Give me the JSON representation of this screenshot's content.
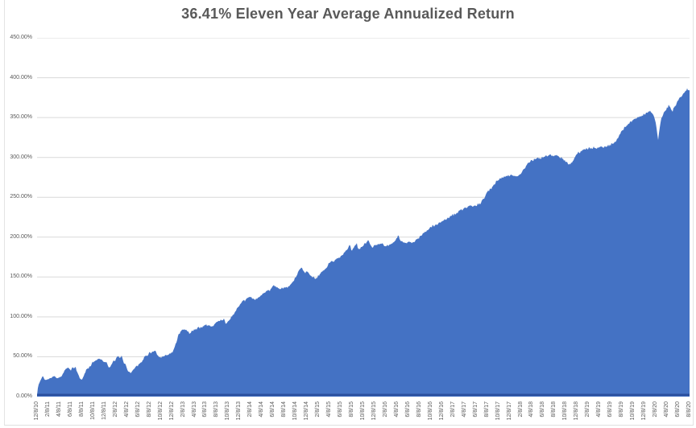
{
  "title": "36.41% Eleven Year Average Annualized Return",
  "colors": {
    "area_fill": "#4472C4",
    "area_bottom_edge": "#2B4F9E",
    "gridline": "#D9D9D9",
    "axis_text": "#595959",
    "title_text": "#595959",
    "chart_border": "#E3E3E3"
  },
  "chart_data": {
    "type": "area",
    "title": "36.41% Eleven Year Average Annualized Return",
    "xlabel": "",
    "ylabel": "",
    "legend": "none",
    "grid": "horizontal",
    "y_axis": {
      "min": 0,
      "max": 450,
      "step": 50,
      "unit": "percent",
      "tick_labels_top_down": [
        "450.00%",
        "400.00%",
        "350.00%",
        "300.00%",
        "250.00%",
        "200.00%",
        "150.00%",
        "100.00%",
        "50.00%",
        "0.00%"
      ]
    },
    "x_axis": {
      "tick_labels": [
        "12/8/10",
        "2/8/11",
        "4/8/11",
        "6/8/11",
        "8/8/11",
        "10/8/11",
        "12/8/11",
        "2/8/12",
        "4/8/12",
        "6/8/12",
        "8/8/12",
        "10/8/12",
        "12/8/12",
        "2/8/13",
        "4/8/13",
        "6/8/13",
        "8/8/13",
        "10/8/13",
        "12/8/13",
        "2/8/14",
        "4/8/14",
        "6/8/14",
        "8/8/14",
        "10/8/14",
        "12/8/14",
        "2/8/15",
        "4/8/15",
        "6/8/15",
        "8/8/15",
        "10/8/15",
        "12/8/15",
        "2/8/16",
        "4/8/16",
        "6/8/16",
        "8/8/16",
        "10/8/16",
        "12/8/16",
        "2/8/17",
        "4/8/17",
        "6/8/17",
        "8/8/17",
        "10/8/17",
        "12/8/17",
        "2/8/18",
        "4/8/18",
        "6/8/18",
        "8/8/18",
        "10/8/18",
        "12/8/18",
        "2/8/19",
        "4/8/19",
        "6/8/19",
        "8/8/19",
        "10/8/19",
        "12/8/19",
        "2/8/20",
        "4/8/20",
        "6/8/20",
        "8/8/20"
      ]
    },
    "x_unit": "tick_index",
    "y_unit": "percent_cumulative_return",
    "series": [
      {
        "color": "#4472C4",
        "points": [
          [
            0,
            2
          ],
          [
            0.1,
            14
          ],
          [
            0.3,
            20
          ],
          [
            0.5,
            26
          ],
          [
            0.7,
            21
          ],
          [
            1,
            22
          ],
          [
            1.3,
            24
          ],
          [
            1.5,
            26
          ],
          [
            1.8,
            23
          ],
          [
            2,
            24
          ],
          [
            2.2,
            26
          ],
          [
            2.5,
            34
          ],
          [
            2.8,
            36
          ],
          [
            3,
            33
          ],
          [
            3.2,
            36
          ],
          [
            3.4,
            37
          ],
          [
            3.6,
            30
          ],
          [
            3.8,
            23
          ],
          [
            4,
            21
          ],
          [
            4.2,
            28
          ],
          [
            4.4,
            34
          ],
          [
            4.7,
            38
          ],
          [
            5,
            44
          ],
          [
            5.3,
            46
          ],
          [
            5.6,
            48
          ],
          [
            5.9,
            45
          ],
          [
            6.2,
            42
          ],
          [
            6.4,
            35
          ],
          [
            6.6,
            40
          ],
          [
            6.8,
            44
          ],
          [
            7,
            47
          ],
          [
            7.2,
            50
          ],
          [
            7.4,
            48
          ],
          [
            7.5,
            51
          ],
          [
            7.7,
            44
          ],
          [
            7.9,
            38
          ],
          [
            8.1,
            33
          ],
          [
            8.3,
            29
          ],
          [
            8.5,
            33
          ],
          [
            8.7,
            37
          ],
          [
            9,
            40
          ],
          [
            9.3,
            44
          ],
          [
            9.6,
            50
          ],
          [
            10,
            55
          ],
          [
            10.3,
            56
          ],
          [
            10.5,
            57
          ],
          [
            10.7,
            52
          ],
          [
            10.9,
            48
          ],
          [
            11.1,
            49
          ],
          [
            11.3,
            51
          ],
          [
            11.6,
            52
          ],
          [
            11.9,
            54
          ],
          [
            12.1,
            57
          ],
          [
            12.3,
            65
          ],
          [
            12.5,
            75
          ],
          [
            12.7,
            81
          ],
          [
            12.9,
            83
          ],
          [
            13.1,
            85
          ],
          [
            13.3,
            83
          ],
          [
            13.5,
            80
          ],
          [
            13.8,
            82
          ],
          [
            14,
            84
          ],
          [
            14.3,
            86
          ],
          [
            14.6,
            87
          ],
          [
            15,
            90
          ],
          [
            15.3,
            89
          ],
          [
            15.6,
            88
          ],
          [
            16,
            94
          ],
          [
            16.3,
            96
          ],
          [
            16.6,
            97
          ],
          [
            16.8,
            91
          ],
          [
            17,
            95
          ],
          [
            17.3,
            100
          ],
          [
            17.6,
            106
          ],
          [
            18,
            115
          ],
          [
            18.4,
            120
          ],
          [
            18.7,
            123
          ],
          [
            19,
            126
          ],
          [
            19.3,
            121
          ],
          [
            19.6,
            123
          ],
          [
            20,
            128
          ],
          [
            20.4,
            132
          ],
          [
            20.7,
            134
          ],
          [
            21,
            140
          ],
          [
            21.3,
            137
          ],
          [
            21.6,
            135
          ],
          [
            22,
            136
          ],
          [
            22.4,
            138
          ],
          [
            22.7,
            143
          ],
          [
            23,
            150
          ],
          [
            23.3,
            158
          ],
          [
            23.5,
            162
          ],
          [
            23.8,
            156
          ],
          [
            24,
            158
          ],
          [
            24.3,
            152
          ],
          [
            24.6,
            149
          ],
          [
            24.8,
            147
          ],
          [
            25,
            152
          ],
          [
            25.4,
            157
          ],
          [
            25.7,
            161
          ],
          [
            26,
            168
          ],
          [
            26.4,
            171
          ],
          [
            26.7,
            173
          ],
          [
            27,
            176
          ],
          [
            27.3,
            180
          ],
          [
            27.6,
            186
          ],
          [
            27.8,
            191
          ],
          [
            28,
            182
          ],
          [
            28.2,
            188
          ],
          [
            28.4,
            192
          ],
          [
            28.6,
            184
          ],
          [
            28.8,
            187
          ],
          [
            29,
            190
          ],
          [
            29.3,
            194
          ],
          [
            29.5,
            195
          ],
          [
            29.8,
            186
          ],
          [
            30,
            190
          ],
          [
            30.3,
            191
          ],
          [
            30.6,
            192
          ],
          [
            31,
            188
          ],
          [
            31.3,
            190
          ],
          [
            31.6,
            192
          ],
          [
            32,
            200
          ],
          [
            32.1,
            203
          ],
          [
            32.3,
            195
          ],
          [
            32.6,
            193
          ],
          [
            33,
            193
          ],
          [
            33.4,
            194
          ],
          [
            33.7,
            196
          ],
          [
            34,
            200
          ],
          [
            34.4,
            205
          ],
          [
            34.7,
            208
          ],
          [
            35,
            213
          ],
          [
            35.4,
            215
          ],
          [
            35.7,
            217
          ],
          [
            36,
            220
          ],
          [
            36.4,
            223
          ],
          [
            36.7,
            226
          ],
          [
            37,
            228
          ],
          [
            37.4,
            231
          ],
          [
            37.7,
            234
          ],
          [
            38,
            236
          ],
          [
            38.4,
            238
          ],
          [
            38.7,
            239
          ],
          [
            39,
            240
          ],
          [
            39.4,
            242
          ],
          [
            39.7,
            248
          ],
          [
            40,
            256
          ],
          [
            40.4,
            262
          ],
          [
            40.7,
            268
          ],
          [
            41,
            272
          ],
          [
            41.4,
            275
          ],
          [
            41.7,
            277
          ],
          [
            42,
            278
          ],
          [
            42.3,
            277
          ],
          [
            42.6,
            276
          ],
          [
            43,
            280
          ],
          [
            43.3,
            286
          ],
          [
            43.6,
            292
          ],
          [
            44,
            296
          ],
          [
            44.3,
            298
          ],
          [
            44.6,
            299
          ],
          [
            45,
            300
          ],
          [
            45.3,
            302
          ],
          [
            45.6,
            303
          ],
          [
            46,
            303
          ],
          [
            46.3,
            302
          ],
          [
            46.6,
            300
          ],
          [
            47,
            295
          ],
          [
            47.2,
            292
          ],
          [
            47.4,
            291
          ],
          [
            47.7,
            297
          ],
          [
            48,
            305
          ],
          [
            48.4,
            308
          ],
          [
            48.7,
            310
          ],
          [
            49,
            311
          ],
          [
            49.4,
            312
          ],
          [
            49.7,
            312
          ],
          [
            50,
            313
          ],
          [
            50.4,
            313
          ],
          [
            50.7,
            314
          ],
          [
            51,
            316
          ],
          [
            51.4,
            320
          ],
          [
            51.7,
            326
          ],
          [
            52,
            334
          ],
          [
            52.4,
            340
          ],
          [
            52.7,
            344
          ],
          [
            53,
            347
          ],
          [
            53.4,
            350
          ],
          [
            53.7,
            352
          ],
          [
            54,
            354
          ],
          [
            54.3,
            356
          ],
          [
            54.5,
            358
          ],
          [
            54.7,
            355
          ],
          [
            54.9,
            349
          ],
          [
            55.05,
            340
          ],
          [
            55.2,
            322
          ],
          [
            55.35,
            338
          ],
          [
            55.5,
            350
          ],
          [
            55.7,
            355
          ],
          [
            56,
            362
          ],
          [
            56.2,
            366
          ],
          [
            56.35,
            360
          ],
          [
            56.5,
            358
          ],
          [
            56.7,
            364
          ],
          [
            57,
            372
          ],
          [
            57.3,
            377
          ],
          [
            57.6,
            383
          ],
          [
            57.8,
            387
          ],
          [
            57.9,
            384
          ],
          [
            58,
            385
          ]
        ]
      }
    ]
  }
}
